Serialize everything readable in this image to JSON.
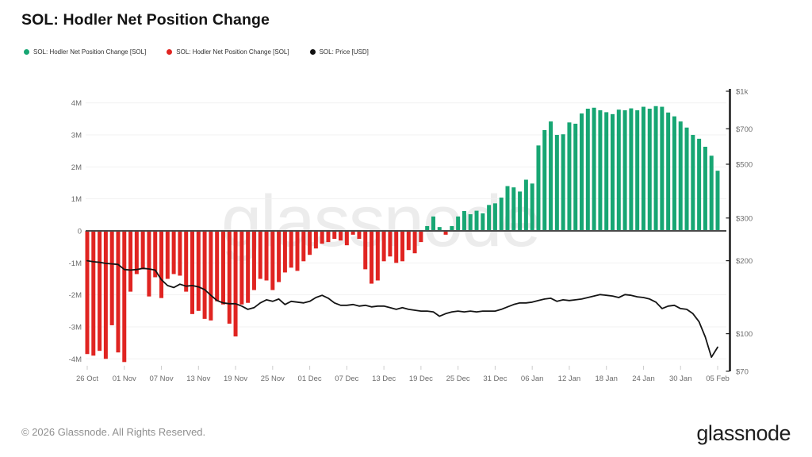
{
  "header": {
    "title": "SOL: Hodler Net Position Change"
  },
  "legend": [
    {
      "name": "hodler-net-position-positive",
      "label": "SOL: Hodler Net Position Change [SOL]",
      "color": "#17a673"
    },
    {
      "name": "hodler-net-position-negative",
      "label": "SOL: Hodler Net Position Change [SOL]",
      "color": "#e02421"
    },
    {
      "name": "price-usd",
      "label": "SOL: Price [USD]",
      "color": "#111111"
    }
  ],
  "watermark": "glassnode",
  "footer": {
    "copyright": "© 2026 Glassnode. All Rights Reserved.",
    "logo": "glassnode"
  },
  "colors": {
    "positive_bar": "#17a673",
    "negative_bar": "#e02421",
    "price_line": "#141414",
    "zero_line": "#4a4a4a",
    "gridline": "#f1f1f1",
    "axis_label": "#6b6b6b",
    "tick_mark": "#cccccc",
    "right_axis_line": "#1a1a1a"
  },
  "chart_data": {
    "type": "bar",
    "title": "SOL: Hodler Net Position Change",
    "xlabel": "",
    "ylabel_left": "Hodler Net Position Change [SOL]",
    "ylabel_right": "Price [USD]",
    "x_start": "26 Oct",
    "x_end": "05 Feb",
    "x_tick_labels": [
      "26 Oct",
      "01 Nov",
      "07 Nov",
      "13 Nov",
      "19 Nov",
      "25 Nov",
      "01 Dec",
      "07 Dec",
      "13 Dec",
      "19 Dec",
      "25 Dec",
      "31 Dec",
      "06 Jan",
      "12 Jan",
      "18 Jan",
      "24 Jan",
      "30 Jan",
      "05 Feb"
    ],
    "x_tick_interval_days": 6,
    "left_axis": {
      "unit": "M SOL",
      "tick_labels": [
        "4M",
        "3M",
        "2M",
        "1M",
        "0",
        "-1M",
        "-2M",
        "-3M",
        "-4M"
      ],
      "tick_values": [
        4,
        3,
        2,
        1,
        0,
        -1,
        -2,
        -3,
        -4
      ],
      "ylim": [
        -4.45,
        4.45
      ],
      "grid": true
    },
    "right_axis": {
      "unit": "USD",
      "scale": "log",
      "tick_labels": [
        "$1k",
        "$700",
        "$500",
        "$300",
        "$200",
        "$100",
        "$70"
      ],
      "tick_values": [
        1000,
        700,
        500,
        300,
        200,
        100,
        70
      ],
      "ylim": [
        70,
        1000
      ]
    },
    "legend_position": "top-left",
    "series": [
      {
        "name": "SOL: Hodler Net Position Change [SOL]",
        "type": "bar",
        "axis": "left",
        "unit": "M",
        "values": [
          -3.85,
          -3.9,
          -3.75,
          -4.0,
          -2.95,
          -3.8,
          -4.1,
          -1.9,
          -1.35,
          -1.2,
          -2.05,
          -1.45,
          -2.1,
          -1.5,
          -1.35,
          -1.4,
          -1.9,
          -2.6,
          -2.5,
          -2.75,
          -2.8,
          -2.2,
          -2.3,
          -2.9,
          -3.3,
          -2.3,
          -2.25,
          -1.85,
          -1.5,
          -1.55,
          -1.85,
          -1.6,
          -1.3,
          -1.15,
          -1.25,
          -0.95,
          -0.75,
          -0.55,
          -0.4,
          -0.35,
          -0.25,
          -0.3,
          -0.45,
          -0.12,
          -0.25,
          -1.2,
          -1.65,
          -1.55,
          -0.95,
          -0.8,
          -1.0,
          -0.95,
          -0.6,
          -0.7,
          -0.35,
          0.15,
          0.45,
          0.12,
          -0.12,
          0.15,
          0.45,
          0.62,
          0.52,
          0.63,
          0.55,
          0.81,
          0.86,
          1.04,
          1.4,
          1.36,
          1.23,
          1.6,
          1.48,
          2.67,
          3.15,
          3.42,
          3.0,
          3.02,
          3.39,
          3.35,
          3.67,
          3.82,
          3.85,
          3.77,
          3.71,
          3.65,
          3.79,
          3.77,
          3.83,
          3.77,
          3.88,
          3.82,
          3.9,
          3.88,
          3.7,
          3.58,
          3.42,
          3.23,
          3.0,
          2.88,
          2.63,
          2.35,
          1.88
        ]
      },
      {
        "name": "SOL: Price [USD]",
        "type": "line",
        "axis": "right",
        "unit": "USD",
        "values": [
          200,
          198,
          197,
          195,
          194,
          193,
          184,
          183,
          184,
          186,
          185,
          183,
          167,
          158,
          155,
          160,
          157,
          158,
          156,
          152,
          144,
          137,
          134,
          133,
          133,
          130,
          126,
          128,
          134,
          138,
          136,
          139,
          132,
          136,
          135,
          134,
          136,
          141,
          144,
          140,
          134,
          131,
          131,
          132,
          130,
          131,
          129,
          130,
          130,
          128,
          126,
          128,
          126,
          125,
          124,
          124,
          123,
          118,
          121,
          123,
          124,
          123,
          124,
          123,
          124,
          124,
          124,
          126,
          129,
          132,
          134,
          134,
          135,
          137,
          139,
          140,
          136,
          138,
          137,
          138,
          139,
          141,
          143,
          145,
          144,
          143,
          141,
          145,
          144,
          142,
          141,
          139,
          135,
          127,
          130,
          131,
          127,
          126,
          121,
          112,
          97,
          80,
          88
        ]
      }
    ]
  }
}
